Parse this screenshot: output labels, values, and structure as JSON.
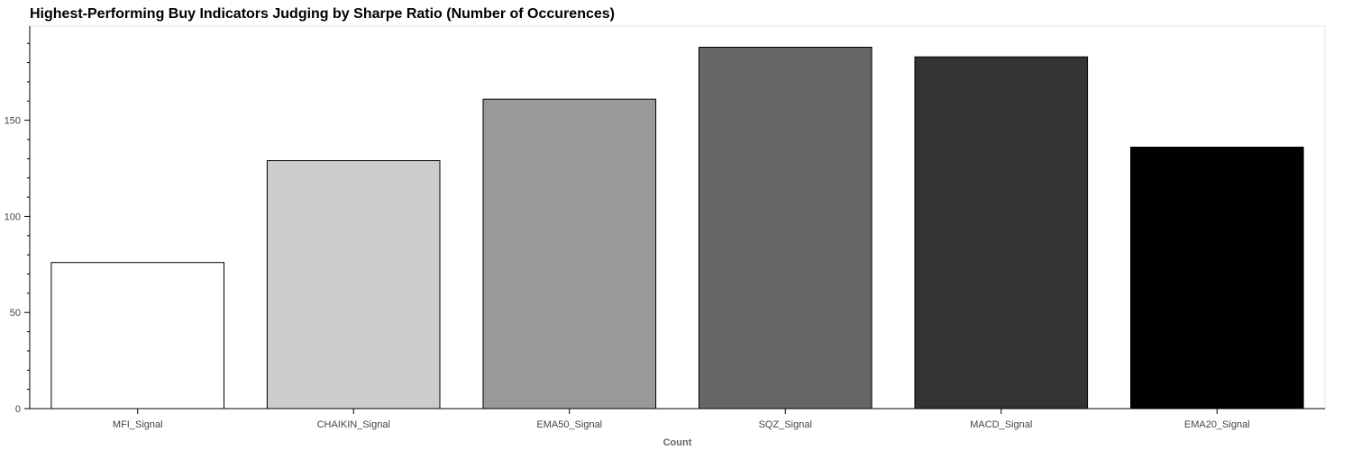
{
  "chart_data": {
    "type": "bar",
    "title": "Highest-Performing Buy Indicators Judging by Sharpe Ratio (Number of Occurences)",
    "xlabel": "Count",
    "ylabel": "",
    "categories": [
      "MFI_Signal",
      "CHAIKIN_Signal",
      "EMA50_Signal",
      "SQZ_Signal",
      "MACD_Signal",
      "EMA20_Signal"
    ],
    "values": [
      76,
      129,
      161,
      188,
      183,
      136
    ],
    "colors": [
      "#ffffff",
      "#cccccc",
      "#999999",
      "#666666",
      "#333333",
      "#000000"
    ],
    "ylim": [
      0,
      199
    ],
    "yticks": [
      0,
      50,
      100,
      150
    ],
    "grid": false,
    "legend": "none"
  }
}
